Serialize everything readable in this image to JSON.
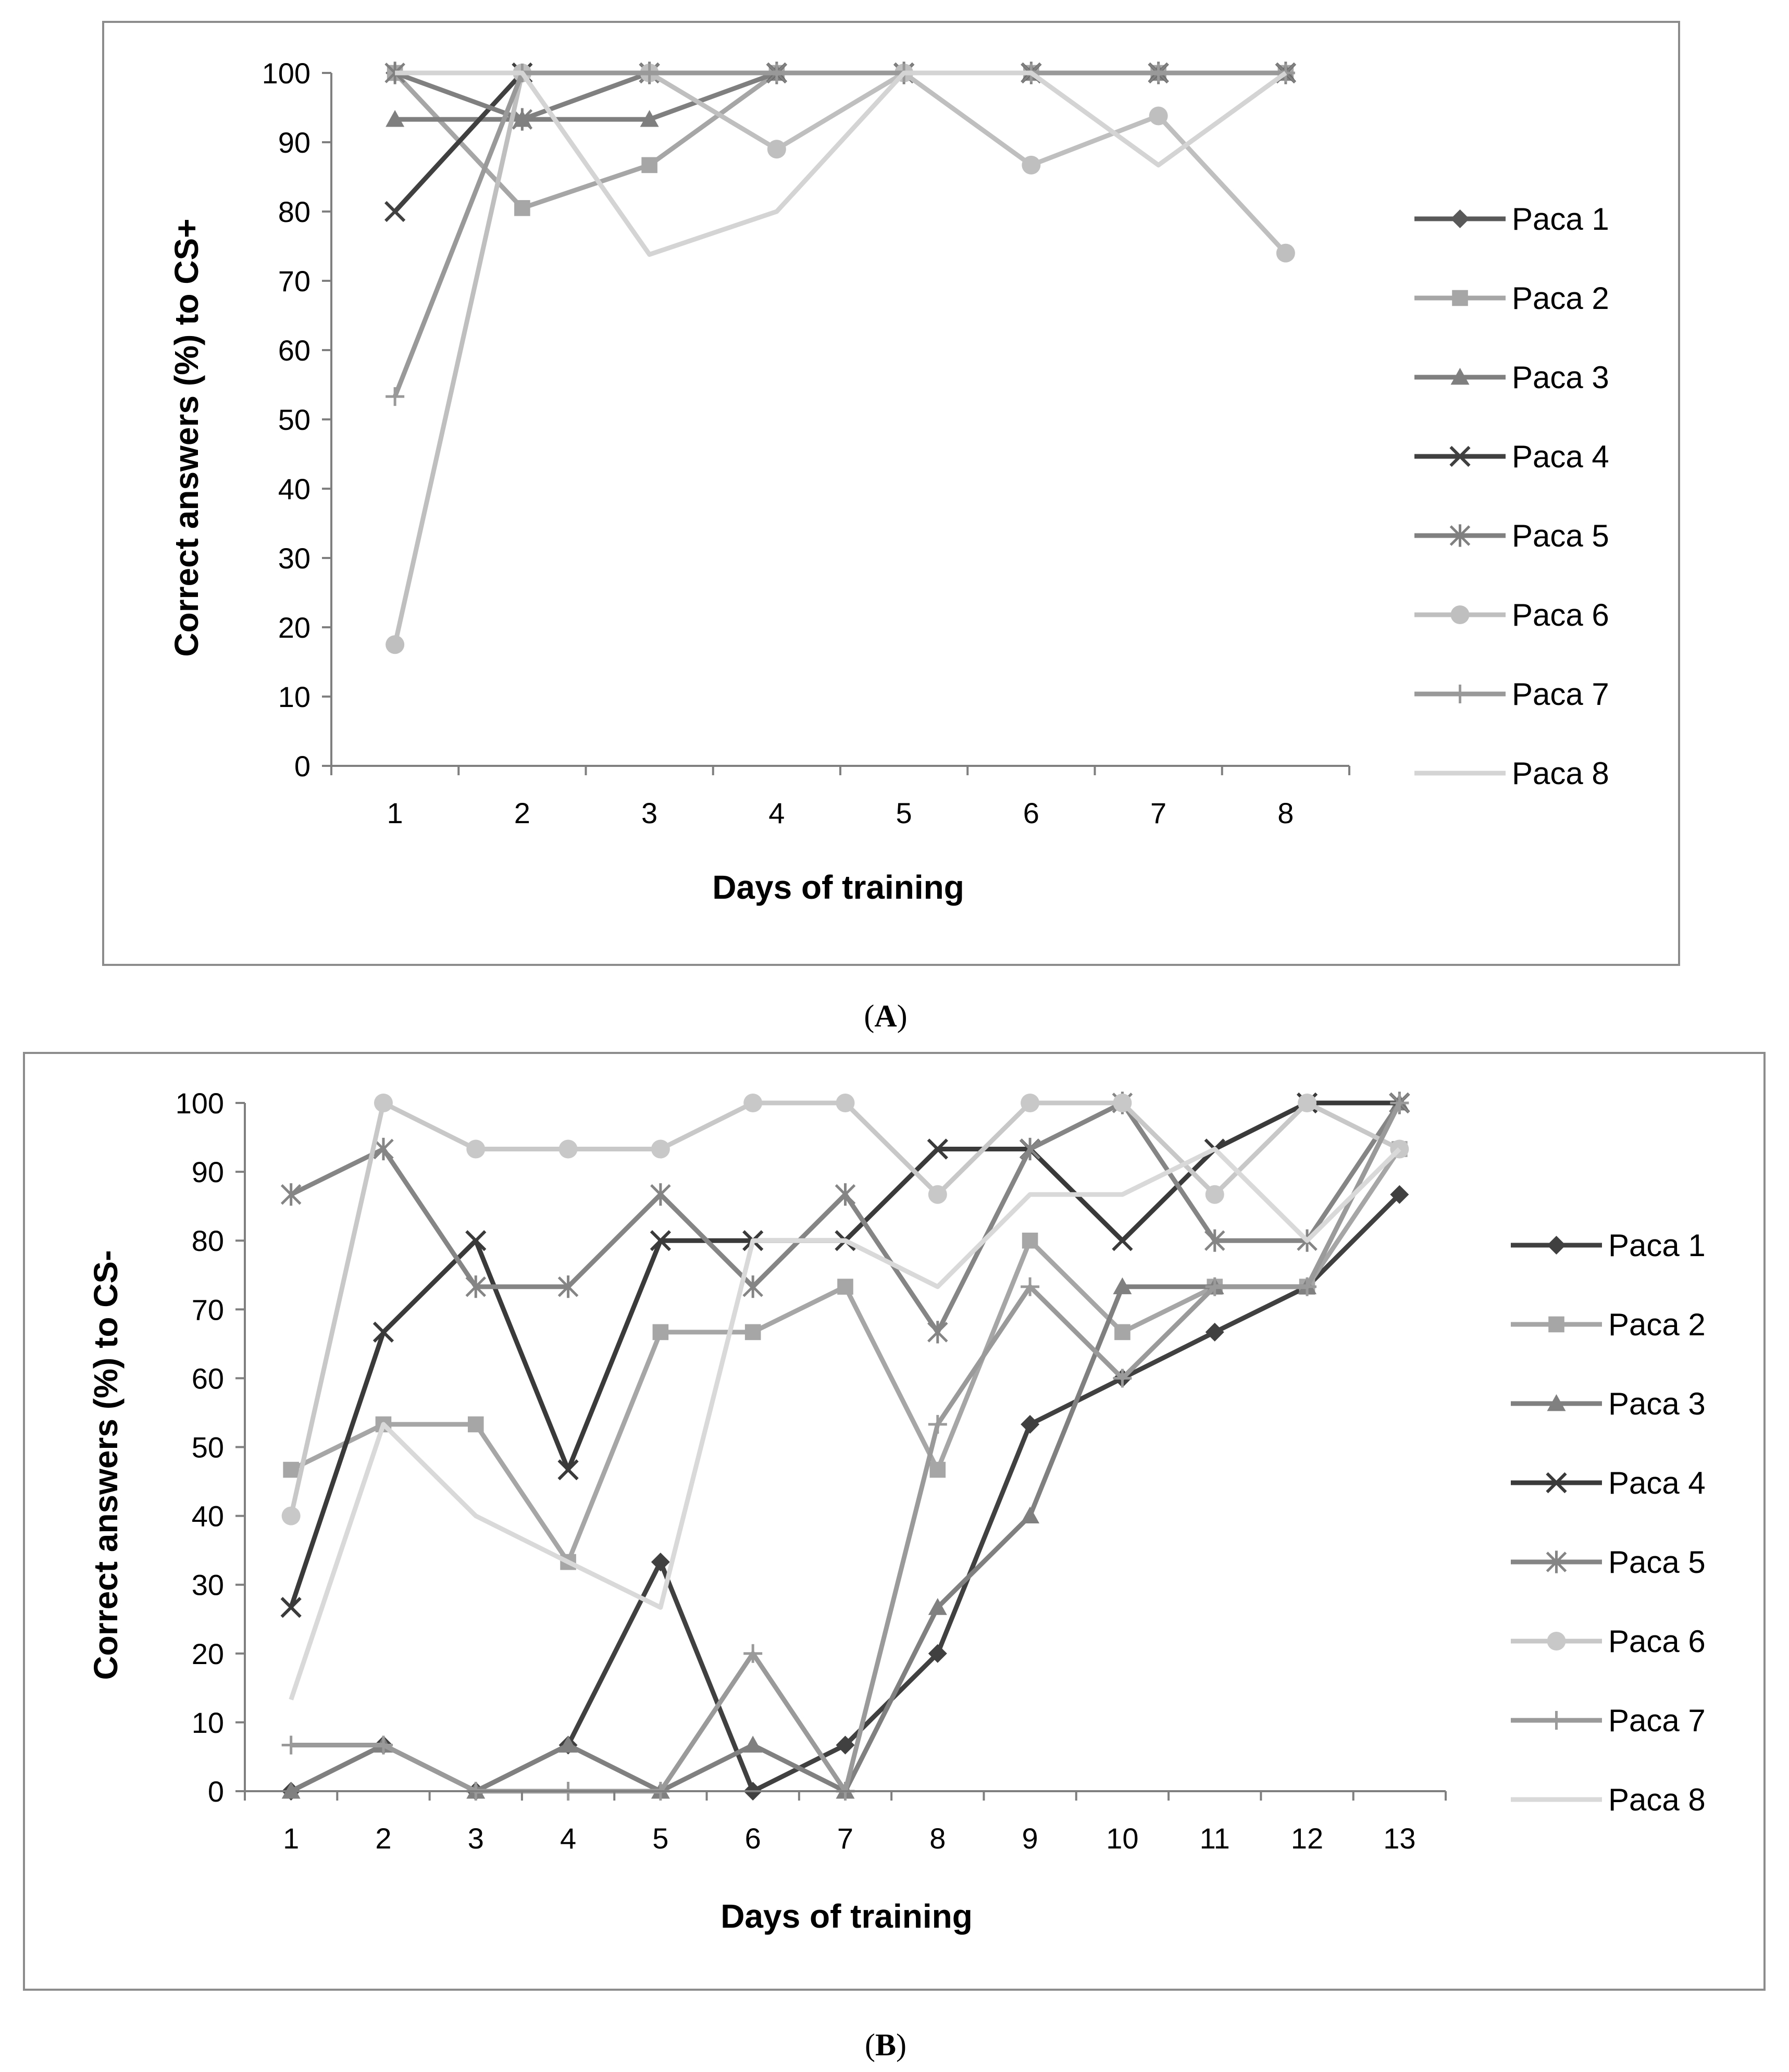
{
  "chart_data": [
    {
      "id": "A",
      "type": "line",
      "caption_letter": "A",
      "xlabel": "Days of training",
      "ylabel": "Correct answers (%) to CS+",
      "ylim": [
        0,
        100
      ],
      "yticks": [
        "0",
        "10",
        "20",
        "30",
        "40",
        "50",
        "60",
        "70",
        "80",
        "90",
        "100"
      ],
      "categories": [
        "1",
        "2",
        "3",
        "4",
        "5",
        "6",
        "7",
        "8"
      ],
      "legend_position": "right",
      "series": [
        {
          "name": "Paca 1",
          "marker": "diamond",
          "color": "#595959",
          "width": 9,
          "values": [
            100,
            100,
            100,
            100,
            100,
            100,
            100,
            100
          ]
        },
        {
          "name": "Paca 2",
          "marker": "square",
          "color": "#a6a6a6",
          "width": 9,
          "values": [
            100,
            80.5,
            86.7,
            100,
            100,
            100,
            100,
            100
          ]
        },
        {
          "name": "Paca 3",
          "marker": "triangle",
          "color": "#7f7f7f",
          "width": 9,
          "values": [
            93.3,
            93.3,
            93.3,
            100,
            100,
            100,
            100,
            100
          ]
        },
        {
          "name": "Paca 4",
          "marker": "x",
          "color": "#404040",
          "width": 9,
          "values": [
            80,
            100,
            100,
            100,
            100,
            100,
            100,
            100
          ]
        },
        {
          "name": "Paca 5",
          "marker": "star",
          "color": "#808080",
          "width": 9,
          "values": [
            100,
            93.3,
            100,
            100,
            100,
            100,
            100,
            100
          ]
        },
        {
          "name": "Paca 6",
          "marker": "circle",
          "color": "#bfbfbf",
          "width": 9,
          "values": [
            17.5,
            100,
            100,
            89,
            100,
            86.7,
            93.8,
            74
          ]
        },
        {
          "name": "Paca 7",
          "marker": "plus",
          "color": "#999999",
          "width": 9,
          "values": [
            53.3,
            100,
            100,
            100,
            100,
            100,
            100,
            100
          ]
        },
        {
          "name": "Paca 8",
          "marker": "none",
          "color": "#d4d4d4",
          "width": 9,
          "values": [
            100,
            100,
            73.8,
            80,
            100,
            100,
            86.7,
            100
          ]
        }
      ]
    },
    {
      "id": "B",
      "type": "line",
      "caption_letter": "B",
      "xlabel": "Days of training",
      "ylabel": "Correct  answers (%) to CS-",
      "ylim": [
        0,
        100
      ],
      "yticks": [
        "0",
        "10",
        "20",
        "30",
        "40",
        "50",
        "60",
        "70",
        "80",
        "90",
        "100"
      ],
      "categories": [
        "1",
        "2",
        "3",
        "4",
        "5",
        "6",
        "7",
        "8",
        "9",
        "10",
        "11",
        "12",
        "13"
      ],
      "legend_position": "right",
      "series": [
        {
          "name": "Paca 1",
          "marker": "diamond",
          "color": "#404040",
          "width": 9,
          "values": [
            0,
            6.7,
            0,
            6.7,
            33.3,
            0,
            6.7,
            20,
            53.3,
            60,
            66.7,
            73.3,
            86.7
          ]
        },
        {
          "name": "Paca 2",
          "marker": "square",
          "color": "#a6a6a6",
          "width": 9,
          "values": [
            46.7,
            53.3,
            53.3,
            33.3,
            66.7,
            66.7,
            73.3,
            46.7,
            80,
            66.7,
            73.3,
            73.3,
            93.3
          ]
        },
        {
          "name": "Paca 3",
          "marker": "triangle",
          "color": "#808080",
          "width": 9,
          "values": [
            0,
            6.7,
            0,
            6.7,
            0,
            6.7,
            0,
            26.7,
            40,
            73.3,
            73.3,
            73.3,
            100
          ]
        },
        {
          "name": "Paca 4",
          "marker": "x",
          "color": "#3a3a3a",
          "width": 9,
          "values": [
            26.7,
            66.7,
            80,
            46.7,
            80,
            80,
            80,
            93.3,
            93.3,
            80,
            93.3,
            100,
            100
          ]
        },
        {
          "name": "Paca 5",
          "marker": "star",
          "color": "#858585",
          "width": 9,
          "values": [
            86.7,
            93.3,
            73.3,
            73.3,
            86.7,
            73.3,
            86.7,
            66.7,
            93.3,
            100,
            80,
            80,
            100
          ]
        },
        {
          "name": "Paca 6",
          "marker": "circle",
          "color": "#c8c8c8",
          "width": 9,
          "values": [
            40,
            100,
            93.3,
            93.3,
            93.3,
            100,
            100,
            86.7,
            100,
            100,
            86.7,
            100,
            93.3
          ]
        },
        {
          "name": "Paca 7",
          "marker": "plus",
          "color": "#9a9a9a",
          "width": 9,
          "values": [
            6.7,
            6.7,
            0,
            0,
            0,
            20,
            0,
            53.3,
            73.3,
            60,
            73.3,
            73.3,
            100
          ]
        },
        {
          "name": "Paca 8",
          "marker": "none",
          "color": "#d9d9d9",
          "width": 9,
          "values": [
            13.3,
            53.3,
            40,
            33.3,
            26.7,
            80,
            80,
            73.3,
            86.7,
            86.7,
            93.3,
            80,
            93.3
          ]
        }
      ]
    }
  ]
}
